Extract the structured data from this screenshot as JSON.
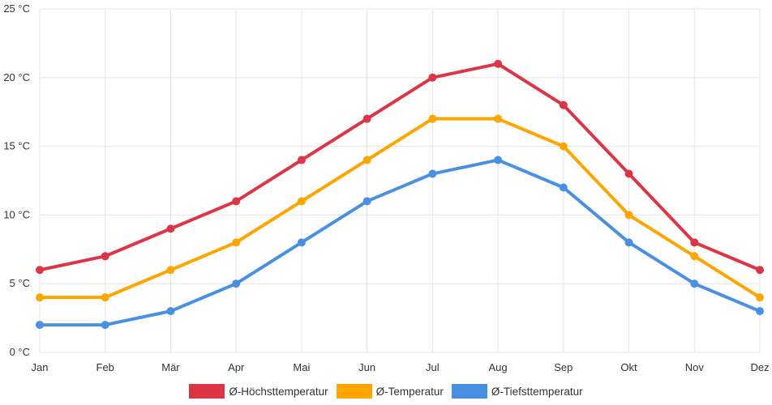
{
  "chart_data": {
    "type": "line",
    "categories": [
      "Jan",
      "Feb",
      "Mär",
      "Apr",
      "Mai",
      "Jun",
      "Jul",
      "Aug",
      "Sep",
      "Okt",
      "Nov",
      "Dez"
    ],
    "ylim": [
      0,
      25
    ],
    "yticks": [
      0,
      5,
      10,
      15,
      20,
      25
    ],
    "yticks_labels": [
      "0 °C",
      "5 °C",
      "10 °C",
      "15 °C",
      "20 °C",
      "25 °C"
    ],
    "grid": true,
    "legend_position": "bottom",
    "title": "",
    "xlabel": "",
    "ylabel": "",
    "series": [
      {
        "name": "Ø-Höchsttemperatur",
        "color": "#dc3545",
        "values": [
          6,
          7,
          9,
          11,
          14,
          17,
          20,
          21,
          18,
          13,
          8,
          6
        ]
      },
      {
        "name": "Ø-Temperatur",
        "color": "#ffa500",
        "values": [
          4,
          4,
          6,
          8,
          11,
          14,
          17,
          17,
          15,
          10,
          7,
          4
        ]
      },
      {
        "name": "Ø-Tiefsttemperatur",
        "color": "#4a90e2",
        "values": [
          2,
          2,
          3,
          5,
          8,
          11,
          13,
          14,
          12,
          8,
          5,
          3
        ]
      }
    ]
  }
}
